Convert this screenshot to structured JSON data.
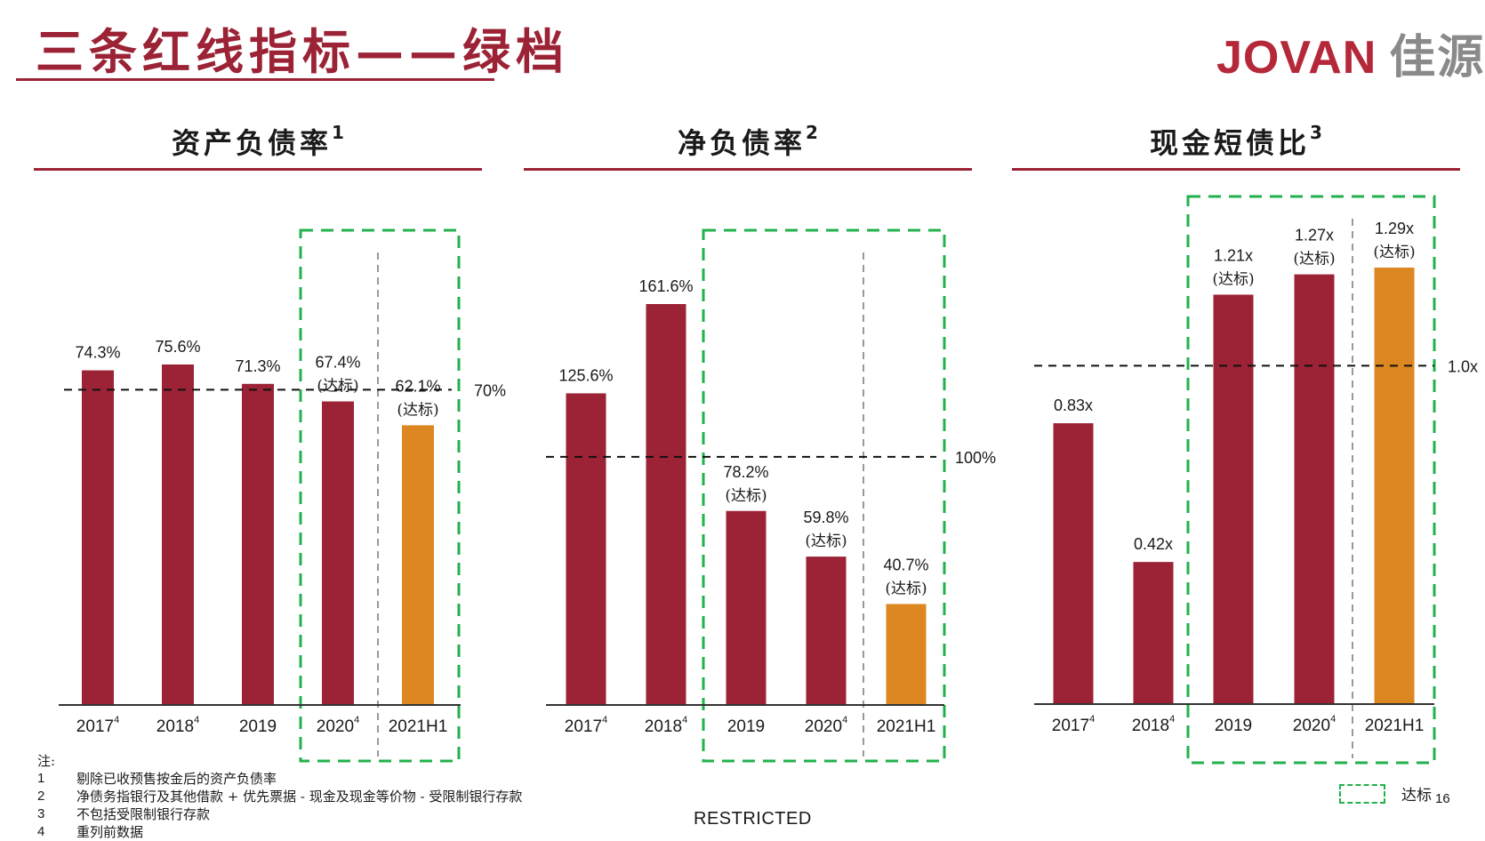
{
  "page": {
    "title": "三条红线指标——绿档",
    "logo_latin": "JOVAN",
    "logo_cn": "佳源",
    "restricted": "RESTRICTED",
    "page_number": "16",
    "legend_label": "达标",
    "notes_label": "注:",
    "notes": [
      {
        "num": "1",
        "text": "剔除已收预售按金后的资产负债率"
      },
      {
        "num": "2",
        "text": "净债务指银行及其他借款 + 优先票据 - 现金及现金等价物 - 受限制银行存款"
      },
      {
        "num": "3",
        "text": "不包括受限制银行存款"
      },
      {
        "num": "4",
        "text": "重列前数据"
      }
    ]
  },
  "colors": {
    "bar_red": "#9b2335",
    "bar_orange": "#dc8721",
    "highlight": "#22b14c",
    "title_red": "#9b2335"
  },
  "chart_data": [
    {
      "type": "bar",
      "title": "资产负债率",
      "title_sup": "1",
      "categories": [
        "2017",
        "2018",
        "2019",
        "2020",
        "2021H1"
      ],
      "category_sup": [
        "4",
        "4",
        "",
        "4",
        ""
      ],
      "values": [
        74.3,
        75.6,
        71.3,
        67.4,
        62.1
      ],
      "value_labels": [
        "74.3%",
        "75.6%",
        "71.3%",
        "67.4%",
        "62.1%"
      ],
      "sub_labels": [
        "",
        "",
        "",
        "(达标)",
        "(达标)"
      ],
      "bar_colors": [
        "#9b2335",
        "#9b2335",
        "#9b2335",
        "#9b2335",
        "#dc8721"
      ],
      "threshold": 70,
      "threshold_label": "70%",
      "ylim": [
        0,
        82
      ],
      "highlight_range": [
        3,
        4
      ],
      "grid": false
    },
    {
      "type": "bar",
      "title": "净负债率",
      "title_sup": "2",
      "categories": [
        "2017",
        "2018",
        "2019",
        "2020",
        "2021H1"
      ],
      "category_sup": [
        "4",
        "4",
        "",
        "4",
        ""
      ],
      "values": [
        125.6,
        161.6,
        78.2,
        59.8,
        40.7
      ],
      "value_labels": [
        "125.6%",
        "161.6%",
        "78.2%",
        "59.8%",
        "40.7%"
      ],
      "sub_labels": [
        "",
        "",
        "(达标)",
        "(达标)",
        "(达标)"
      ],
      "bar_colors": [
        "#9b2335",
        "#9b2335",
        "#9b2335",
        "#9b2335",
        "#dc8721"
      ],
      "threshold": 100,
      "threshold_label": "100%",
      "ylim": [
        0,
        180
      ],
      "highlight_range": [
        2,
        4
      ],
      "grid": false
    },
    {
      "type": "bar",
      "title": "现金短债比",
      "title_sup": "3",
      "categories": [
        "2017",
        "2018",
        "2019",
        "2020",
        "2021H1"
      ],
      "category_sup": [
        "4",
        "4",
        "",
        "4",
        ""
      ],
      "values": [
        0.83,
        0.42,
        1.21,
        1.27,
        1.29
      ],
      "value_labels": [
        "0.83x",
        "0.42x",
        "1.21x",
        "1.27x",
        "1.29x"
      ],
      "sub_labels": [
        "",
        "",
        "(达标)",
        "(达标)",
        "(达标)"
      ],
      "bar_colors": [
        "#9b2335",
        "#9b2335",
        "#9b2335",
        "#9b2335",
        "#dc8721"
      ],
      "threshold": 1.0,
      "threshold_label": "1.0x",
      "ylim": [
        0,
        1.3
      ],
      "highlight_range": [
        2,
        4
      ],
      "grid": false
    }
  ]
}
